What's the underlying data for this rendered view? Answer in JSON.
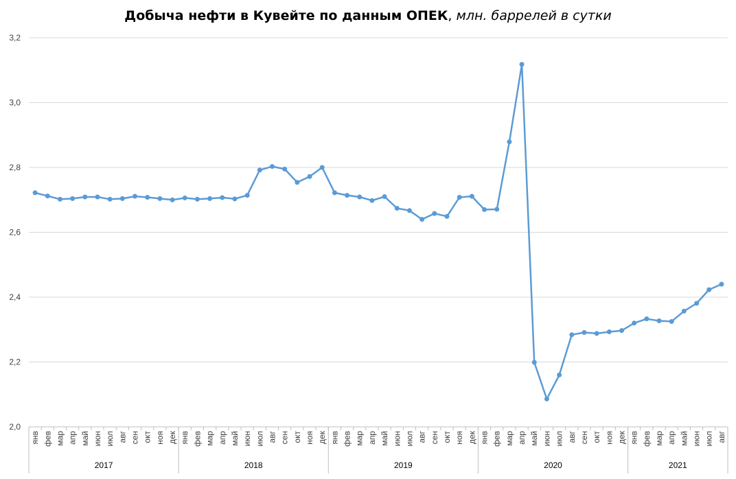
{
  "title_main": "Добыча нефти в Кувейте по данным ОПЕК",
  "title_sep": ", ",
  "title_unit": "млн. баррелей в сутки",
  "colors": {
    "line": "#5B9BD5",
    "grid": "#D9D9D9",
    "axis": "#BFBFBF",
    "text": "#404040"
  },
  "chart_data": {
    "type": "line",
    "title": "Добыча нефти в Кувейте по данным ОПЕК, млн. баррелей в сутки",
    "ylim": [
      2.0,
      3.2
    ],
    "yticks": [
      "2,0",
      "2,2",
      "2,4",
      "2,6",
      "2,8",
      "3,0",
      "3,2"
    ],
    "grid": true,
    "legend": "none",
    "groups": [
      {
        "year": "2017",
        "months": [
          "янв",
          "фев",
          "мар",
          "апр",
          "май",
          "июн",
          "июл",
          "авг",
          "сен",
          "окт",
          "ноя",
          "дек"
        ]
      },
      {
        "year": "2018",
        "months": [
          "янв",
          "фев",
          "мар",
          "апр",
          "май",
          "июн",
          "июл",
          "авг",
          "сен",
          "окт",
          "ноя",
          "дек"
        ]
      },
      {
        "year": "2019",
        "months": [
          "янв",
          "фев",
          "мар",
          "апр",
          "май",
          "июн",
          "июл",
          "авг",
          "сен",
          "окт",
          "ноя",
          "дек"
        ]
      },
      {
        "year": "2020",
        "months": [
          "янв",
          "фев",
          "мар",
          "апр",
          "май",
          "июн",
          "июл",
          "авг",
          "сен",
          "окт",
          "ноя",
          "дек"
        ]
      },
      {
        "year": "2021",
        "months": [
          "янв",
          "фев",
          "мар",
          "апр",
          "май",
          "июн",
          "июл",
          "авг"
        ]
      }
    ],
    "values": [
      2.722,
      2.712,
      2.702,
      2.704,
      2.709,
      2.709,
      2.702,
      2.704,
      2.711,
      2.708,
      2.704,
      2.7,
      2.706,
      2.702,
      2.704,
      2.707,
      2.703,
      2.714,
      2.792,
      2.803,
      2.795,
      2.754,
      2.772,
      2.8,
      2.722,
      2.714,
      2.709,
      2.698,
      2.71,
      2.674,
      2.667,
      2.64,
      2.658,
      2.649,
      2.708,
      2.711,
      2.67,
      2.671,
      2.879,
      3.118,
      2.199,
      2.086,
      2.16,
      2.284,
      2.291,
      2.288,
      2.293,
      2.297,
      2.32,
      2.333,
      2.327,
      2.325,
      2.357,
      2.381,
      2.423,
      2.44
    ]
  }
}
